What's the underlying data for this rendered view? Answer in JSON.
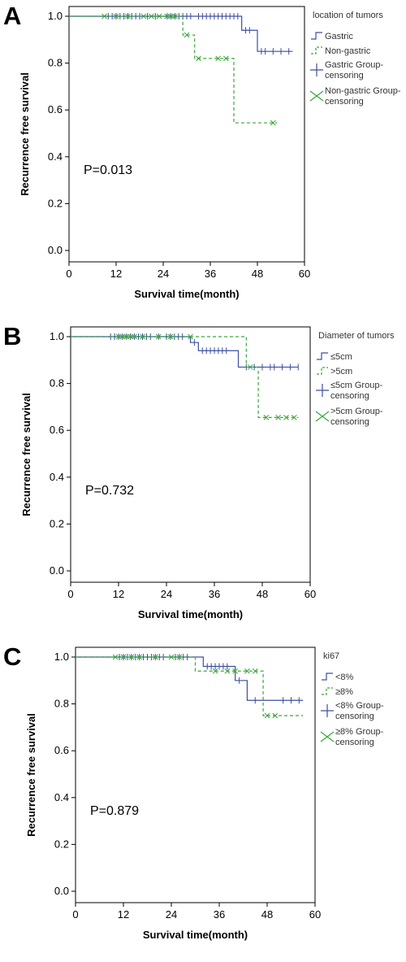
{
  "colors": {
    "gastric": "#3d4fa0",
    "nongastric": "#3aa63a"
  },
  "chart_data": [
    {
      "type": "line",
      "panel_label": "A",
      "xlabel": "Survival time(month)",
      "ylabel": "Recurrence free survival",
      "xlim": [
        0,
        60
      ],
      "ylim": [
        0,
        1
      ],
      "x_ticks": [
        "0",
        "12",
        "24",
        "36",
        "48",
        "60"
      ],
      "y_ticks": [
        "0.0",
        "0.2",
        "0.4",
        "0.6",
        "0.8",
        "1.0"
      ],
      "annotation": "P=0.013",
      "legend_title": "location of tumors",
      "legend": [
        "Gastric",
        "Non-gastric",
        "Gastric Group-censoring",
        "Non-gastric Group-censoring"
      ],
      "series": [
        {
          "name": "Gastric",
          "style": "solid",
          "steps": [
            [
              0,
              1.0
            ],
            [
              44,
              0.94
            ],
            [
              48,
              0.85
            ],
            [
              57,
              0.85
            ]
          ],
          "censored": [
            [
              10,
              1
            ],
            [
              11,
              1
            ],
            [
              12,
              1
            ],
            [
              13,
              1
            ],
            [
              14,
              1
            ],
            [
              15,
              1
            ],
            [
              16,
              1
            ],
            [
              17,
              1
            ],
            [
              18,
              1
            ],
            [
              20,
              1
            ],
            [
              22,
              1
            ],
            [
              25,
              1
            ],
            [
              26,
              1
            ],
            [
              27,
              1
            ],
            [
              28,
              1
            ],
            [
              29,
              1
            ],
            [
              30,
              1
            ],
            [
              31,
              1
            ],
            [
              33,
              1
            ],
            [
              34,
              1
            ],
            [
              35,
              1
            ],
            [
              36,
              1
            ],
            [
              37,
              1
            ],
            [
              38,
              1
            ],
            [
              39,
              1
            ],
            [
              40,
              1
            ],
            [
              41,
              1
            ],
            [
              42,
              1
            ],
            [
              43,
              1
            ],
            [
              45,
              0.94
            ],
            [
              46,
              0.94
            ],
            [
              49,
              0.85
            ],
            [
              50,
              0.85
            ],
            [
              52,
              0.85
            ],
            [
              54,
              0.85
            ],
            [
              56,
              0.85
            ]
          ]
        },
        {
          "name": "Non-gastric",
          "style": "dashed",
          "steps": [
            [
              0,
              1.0
            ],
            [
              29,
              0.92
            ],
            [
              32,
              0.82
            ],
            [
              42,
              0.545
            ],
            [
              53,
              0.545
            ]
          ],
          "censored": [
            [
              9,
              1
            ],
            [
              12,
              1
            ],
            [
              15,
              1
            ],
            [
              19,
              1
            ],
            [
              21,
              1
            ],
            [
              23,
              1
            ],
            [
              25,
              1
            ],
            [
              26,
              1
            ],
            [
              27,
              1
            ],
            [
              30,
              0.92
            ],
            [
              33,
              0.82
            ],
            [
              38,
              0.82
            ],
            [
              40,
              0.82
            ],
            [
              52,
              0.545
            ]
          ]
        }
      ]
    },
    {
      "type": "line",
      "panel_label": "B",
      "xlabel": "Survival time(month)",
      "ylabel": "Recurrence free survival",
      "xlim": [
        0,
        60
      ],
      "ylim": [
        0,
        1
      ],
      "x_ticks": [
        "0",
        "12",
        "24",
        "36",
        "48",
        "60"
      ],
      "y_ticks": [
        "0.0",
        "0.2",
        "0.4",
        "0.6",
        "0.8",
        "1.0"
      ],
      "annotation": "P=0.732",
      "legend_title": "Diameter of tumors",
      "legend": [
        "≤5cm",
        ">5cm",
        "≤5cm Group-censoring",
        ">5cm Group-censoring"
      ],
      "series": [
        {
          "name": "≤5cm",
          "style": "solid",
          "steps": [
            [
              0,
              1.0
            ],
            [
              30,
              0.975
            ],
            [
              32,
              0.94
            ],
            [
              42,
              0.87
            ],
            [
              57,
              0.87
            ]
          ],
          "censored": [
            [
              10,
              1
            ],
            [
              11,
              1
            ],
            [
              12,
              1
            ],
            [
              13,
              1
            ],
            [
              14,
              1
            ],
            [
              15,
              1
            ],
            [
              16,
              1
            ],
            [
              17,
              1
            ],
            [
              18,
              1
            ],
            [
              19,
              1
            ],
            [
              20,
              1
            ],
            [
              22,
              1
            ],
            [
              24,
              1
            ],
            [
              25,
              1
            ],
            [
              26,
              1
            ],
            [
              27,
              1
            ],
            [
              28,
              1
            ],
            [
              31,
              0.975
            ],
            [
              33,
              0.94
            ],
            [
              34,
              0.94
            ],
            [
              35,
              0.94
            ],
            [
              36,
              0.94
            ],
            [
              37,
              0.94
            ],
            [
              38,
              0.94
            ],
            [
              39,
              0.94
            ],
            [
              44,
              0.87
            ],
            [
              46,
              0.87
            ],
            [
              48,
              0.87
            ],
            [
              50,
              0.87
            ],
            [
              51,
              0.87
            ],
            [
              53,
              0.87
            ],
            [
              55,
              0.87
            ],
            [
              57,
              0.87
            ]
          ]
        },
        {
          "name": ">5cm",
          "style": "dashed",
          "steps": [
            [
              0,
              1.0
            ],
            [
              44,
              0.87
            ],
            [
              47,
              0.655
            ],
            [
              57,
              0.655
            ]
          ],
          "censored": [
            [
              12,
              1
            ],
            [
              13,
              1
            ],
            [
              14,
              1
            ],
            [
              15,
              1
            ],
            [
              16,
              1
            ],
            [
              18,
              1
            ],
            [
              22,
              1
            ],
            [
              25,
              1
            ],
            [
              30,
              1
            ],
            [
              45,
              0.87
            ],
            [
              49,
              0.655
            ],
            [
              52,
              0.655
            ],
            [
              54,
              0.655
            ],
            [
              56,
              0.655
            ]
          ]
        }
      ]
    },
    {
      "type": "line",
      "panel_label": "C",
      "xlabel": "Survival time(month)",
      "ylabel": "Recurrence free survival",
      "xlim": [
        0,
        60
      ],
      "ylim": [
        0,
        1
      ],
      "x_ticks": [
        "0",
        "12",
        "24",
        "36",
        "48",
        "60"
      ],
      "y_ticks": [
        "0.0",
        "0.2",
        "0.4",
        "0.6",
        "0.8",
        "1.0"
      ],
      "annotation": "P=0.879",
      "legend_title": "ki67",
      "legend": [
        "<8%",
        "≥8%",
        "<8% Group-censoring",
        "≥8% Group-censoring"
      ],
      "series": [
        {
          "name": "<8%",
          "style": "solid",
          "steps": [
            [
              0,
              1.0
            ],
            [
              32,
              0.96
            ],
            [
              40,
              0.9
            ],
            [
              43,
              0.815
            ],
            [
              57,
              0.815
            ]
          ],
          "censored": [
            [
              11,
              1
            ],
            [
              12,
              1
            ],
            [
              13,
              1
            ],
            [
              14,
              1
            ],
            [
              15,
              1
            ],
            [
              16,
              1
            ],
            [
              17,
              1
            ],
            [
              18,
              1
            ],
            [
              19,
              1
            ],
            [
              20,
              1
            ],
            [
              21,
              1
            ],
            [
              22,
              1
            ],
            [
              25,
              1
            ],
            [
              26,
              1
            ],
            [
              27,
              1
            ],
            [
              28,
              1
            ],
            [
              33,
              0.96
            ],
            [
              34,
              0.96
            ],
            [
              35,
              0.96
            ],
            [
              36,
              0.96
            ],
            [
              37,
              0.96
            ],
            [
              38,
              0.96
            ],
            [
              41,
              0.9
            ],
            [
              45,
              0.815
            ],
            [
              52,
              0.815
            ],
            [
              54,
              0.815
            ],
            [
              56,
              0.815
            ]
          ]
        },
        {
          "name": "≥8%",
          "style": "dashed",
          "steps": [
            [
              0,
              1.0
            ],
            [
              30,
              0.94
            ],
            [
              47,
              0.75
            ],
            [
              57,
              0.75
            ]
          ],
          "censored": [
            [
              10,
              1
            ],
            [
              12,
              1
            ],
            [
              14,
              1
            ],
            [
              16,
              1
            ],
            [
              20,
              1
            ],
            [
              24,
              1
            ],
            [
              26,
              1
            ],
            [
              35,
              0.94
            ],
            [
              38,
              0.94
            ],
            [
              40,
              0.94
            ],
            [
              43,
              0.94
            ],
            [
              45,
              0.94
            ],
            [
              48,
              0.75
            ],
            [
              50,
              0.75
            ]
          ]
        }
      ]
    }
  ]
}
